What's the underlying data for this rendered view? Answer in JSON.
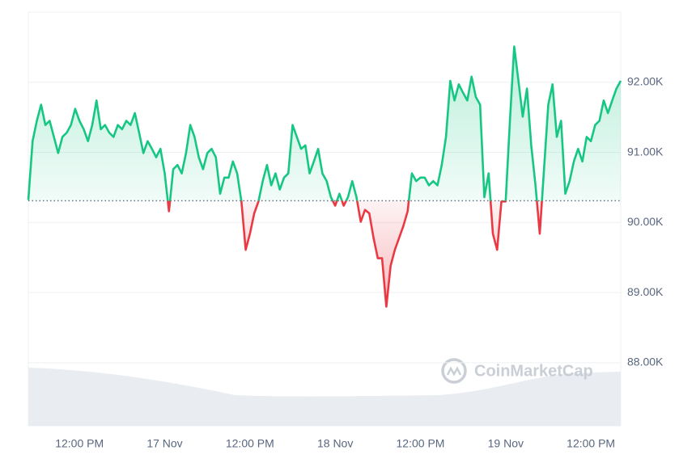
{
  "chart_data": {
    "type": "baseline-line",
    "watermark": "CoinMarketCap",
    "baseline": 90310,
    "color_up": "#16c784",
    "color_down": "#ea3943",
    "ylim": [
      87100,
      93000
    ],
    "yticks": [
      {
        "value": 88000,
        "label": "88.00K"
      },
      {
        "value": 89000,
        "label": "89.00K"
      },
      {
        "value": 90000,
        "label": "90.00K"
      },
      {
        "value": 91000,
        "label": "91.00K"
      },
      {
        "value": 92000,
        "label": "92.00K"
      }
    ],
    "grid": true,
    "categories": [
      null,
      null,
      null,
      null,
      null,
      null,
      null,
      null,
      null,
      null,
      null,
      null,
      "12:00 PM",
      null,
      null,
      null,
      null,
      null,
      null,
      null,
      null,
      null,
      null,
      null,
      null,
      null,
      null,
      null,
      null,
      null,
      null,
      null,
      "17 Nov",
      null,
      null,
      null,
      null,
      null,
      null,
      null,
      null,
      null,
      null,
      null,
      null,
      null,
      null,
      null,
      null,
      null,
      null,
      null,
      "12:00 PM",
      null,
      null,
      null,
      null,
      null,
      null,
      null,
      null,
      null,
      null,
      null,
      null,
      null,
      null,
      null,
      null,
      null,
      null,
      null,
      "18 Nov",
      null,
      null,
      null,
      null,
      null,
      null,
      null,
      null,
      null,
      null,
      null,
      null,
      null,
      null,
      null,
      null,
      null,
      null,
      null,
      "12:00 PM",
      null,
      null,
      null,
      null,
      null,
      null,
      null,
      null,
      null,
      null,
      null,
      null,
      null,
      null,
      null,
      null,
      null,
      null,
      null,
      "19 Nov",
      null,
      null,
      null,
      null,
      null,
      null,
      null,
      null,
      null,
      null,
      null,
      null,
      null,
      null,
      null,
      null,
      null,
      null,
      null,
      "12:00 PM",
      null,
      null,
      null,
      null,
      null,
      null,
      null
    ],
    "values": [
      90320,
      91160,
      91450,
      91680,
      91390,
      91450,
      91220,
      90990,
      91220,
      91280,
      91390,
      91620,
      91450,
      91330,
      91160,
      91390,
      91740,
      91330,
      91390,
      91280,
      91220,
      91390,
      91330,
      91450,
      91390,
      91560,
      91280,
      90990,
      91160,
      91050,
      90930,
      91050,
      90700,
      90160,
      90760,
      90820,
      90700,
      90990,
      91390,
      91220,
      90930,
      90760,
      90990,
      91050,
      90930,
      90410,
      90640,
      90640,
      90870,
      90700,
      90300,
      89610,
      89840,
      90130,
      90300,
      90590,
      90820,
      90530,
      90700,
      90470,
      90640,
      90700,
      91390,
      91220,
      91050,
      91100,
      90700,
      90870,
      91050,
      90700,
      90590,
      90360,
      90240,
      90410,
      90240,
      90360,
      90590,
      90360,
      90010,
      90180,
      90130,
      89780,
      89490,
      89490,
      88800,
      89380,
      89610,
      89780,
      89950,
      90160,
      90700,
      90590,
      90640,
      90640,
      90530,
      90590,
      90530,
      90820,
      91220,
      92020,
      91740,
      91970,
      91850,
      91740,
      92080,
      91790,
      91680,
      90360,
      90700,
      89840,
      89610,
      90300,
      90300,
      91450,
      92510,
      92020,
      91510,
      91910,
      91100,
      90530,
      89840,
      90760,
      91680,
      91970,
      91220,
      91450,
      90410,
      90590,
      90870,
      91050,
      90870,
      91220,
      91160,
      91390,
      91450,
      91740,
      91560,
      91740,
      91910,
      92020
    ]
  }
}
